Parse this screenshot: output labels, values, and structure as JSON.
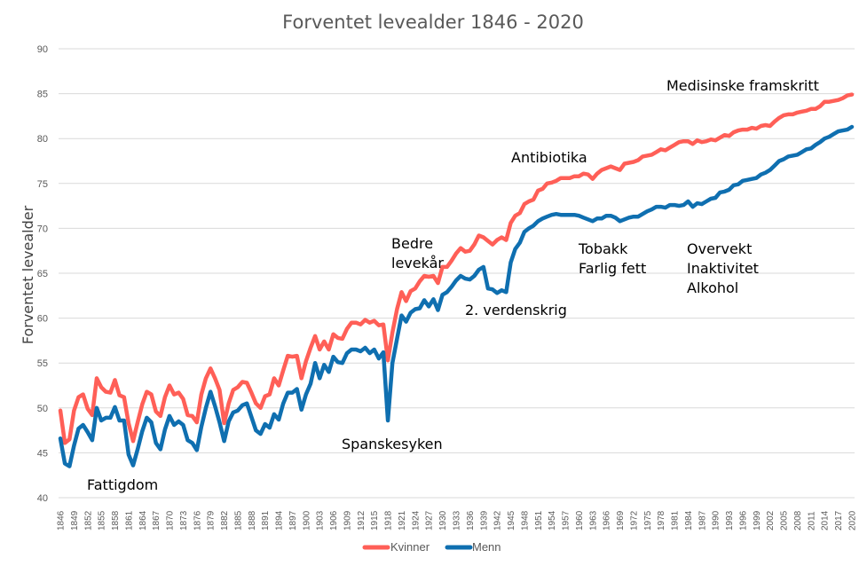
{
  "chart_data": {
    "type": "line",
    "title": "Forventet levealder 1846 - 2020",
    "xlabel": "",
    "ylabel": "Forventet levealder",
    "ylim": [
      40,
      90
    ],
    "yticks": [
      40,
      45,
      50,
      55,
      60,
      65,
      70,
      75,
      80,
      85,
      90
    ],
    "xlim": [
      1846,
      2020
    ],
    "xtick_step": 3,
    "grid": true,
    "legend_position": "bottom",
    "colors": {
      "Kvinner": "#ff5f57",
      "Menn": "#0f6fb0"
    },
    "x_start": 1846,
    "series": [
      {
        "name": "Kvinner",
        "values": [
          49.7,
          46.1,
          46.5,
          49.7,
          51.2,
          51.5,
          49.9,
          49.2,
          53.3,
          52.3,
          51.8,
          51.7,
          53.1,
          51.4,
          51.2,
          48.3,
          46.3,
          48.4,
          50.4,
          51.8,
          51.5,
          49.6,
          49.1,
          51.2,
          52.5,
          51.5,
          51.7,
          51.0,
          49.2,
          49.1,
          48.4,
          51.5,
          53.3,
          54.4,
          53.3,
          52.0,
          48.3,
          50.5,
          52.0,
          52.3,
          52.9,
          52.8,
          51.7,
          50.5,
          50.0,
          51.3,
          51.5,
          53.3,
          52.5,
          54.2,
          55.8,
          55.7,
          55.8,
          53.3,
          55.2,
          56.7,
          58.0,
          56.5,
          57.4,
          56.5,
          58.2,
          57.8,
          57.7,
          58.8,
          59.5,
          59.5,
          59.3,
          59.8,
          59.5,
          59.7,
          59.2,
          59.3,
          55.3,
          58.4,
          61.0,
          62.9,
          61.9,
          63.0,
          63.3,
          64.1,
          64.7,
          64.6,
          64.7,
          63.9,
          65.7,
          65.7,
          66.4,
          67.2,
          67.8,
          67.4,
          67.5,
          68.2,
          69.2,
          69.0,
          68.6,
          68.2,
          68.7,
          69.0,
          68.7,
          70.6,
          71.4,
          71.7,
          72.7,
          73.0,
          73.2,
          74.2,
          74.4,
          75.0,
          75.1,
          75.3,
          75.6,
          75.6,
          75.6,
          75.8,
          75.8,
          76.1,
          76.0,
          75.5,
          76.1,
          76.5,
          76.7,
          76.9,
          76.7,
          76.5,
          77.2,
          77.3,
          77.4,
          77.6,
          78.0,
          78.1,
          78.2,
          78.5,
          78.8,
          78.7,
          79.0,
          79.3,
          79.6,
          79.7,
          79.7,
          79.4,
          79.8,
          79.6,
          79.7,
          79.9,
          79.8,
          80.1,
          80.4,
          80.3,
          80.7,
          80.9,
          81.0,
          81.0,
          81.2,
          81.1,
          81.4,
          81.5,
          81.4,
          81.9,
          82.3,
          82.6,
          82.7,
          82.7,
          82.9,
          83.0,
          83.1,
          83.3,
          83.3,
          83.6,
          84.1,
          84.1,
          84.2,
          84.3,
          84.5,
          84.8,
          84.9
        ]
      },
      {
        "name": "Menn",
        "values": [
          46.6,
          43.8,
          43.5,
          45.8,
          47.7,
          48.1,
          47.3,
          46.4,
          50.0,
          48.6,
          48.9,
          48.9,
          50.1,
          48.6,
          48.6,
          44.8,
          43.6,
          45.4,
          47.4,
          48.9,
          48.4,
          46.1,
          45.4,
          47.6,
          49.1,
          48.1,
          48.5,
          48.1,
          46.4,
          46.1,
          45.3,
          47.9,
          50.0,
          51.8,
          50.2,
          48.4,
          46.3,
          48.5,
          49.5,
          49.7,
          50.3,
          50.5,
          49.0,
          47.5,
          47.1,
          48.2,
          47.8,
          49.3,
          48.7,
          50.5,
          51.7,
          51.7,
          52.1,
          49.8,
          51.5,
          52.7,
          55.0,
          53.3,
          54.8,
          54.0,
          55.7,
          55.1,
          55.0,
          56.1,
          56.5,
          56.5,
          56.3,
          56.7,
          56.1,
          56.5,
          55.5,
          56.2,
          48.6,
          55.0,
          57.7,
          60.3,
          59.6,
          60.6,
          61.0,
          61.1,
          62.0,
          61.3,
          62.1,
          60.9,
          62.6,
          62.9,
          63.5,
          64.2,
          64.7,
          64.4,
          64.3,
          64.7,
          65.4,
          65.7,
          63.3,
          63.2,
          62.8,
          63.1,
          62.9,
          66.2,
          67.7,
          68.4,
          69.6,
          70.0,
          70.3,
          70.8,
          71.1,
          71.3,
          71.5,
          71.6,
          71.5,
          71.5,
          71.5,
          71.5,
          71.4,
          71.2,
          71.0,
          70.8,
          71.1,
          71.1,
          71.4,
          71.4,
          71.2,
          70.8,
          71.0,
          71.2,
          71.3,
          71.3,
          71.6,
          71.9,
          72.1,
          72.4,
          72.4,
          72.3,
          72.6,
          72.6,
          72.5,
          72.6,
          73.0,
          72.4,
          72.8,
          72.7,
          73.0,
          73.3,
          73.4,
          74.0,
          74.1,
          74.3,
          74.8,
          74.9,
          75.3,
          75.4,
          75.5,
          75.6,
          76.0,
          76.2,
          76.5,
          77.0,
          77.5,
          77.7,
          78.0,
          78.1,
          78.2,
          78.5,
          78.8,
          78.9,
          79.3,
          79.6,
          80.0,
          80.2,
          80.5,
          80.8,
          80.9,
          81.0,
          81.3
        ]
      }
    ],
    "annotations": [
      {
        "id": "fattigdom",
        "lines": [
          "Fattigdom"
        ]
      },
      {
        "id": "spanskesyken",
        "lines": [
          "Spanskesyken"
        ]
      },
      {
        "id": "bedre-levekar",
        "lines": [
          "Bedre",
          "levekår"
        ]
      },
      {
        "id": "verdenskrig",
        "lines": [
          "2. verdenskrig"
        ]
      },
      {
        "id": "antibiotika",
        "lines": [
          "Antibiotika"
        ]
      },
      {
        "id": "tobakk",
        "lines": [
          "Tobakk",
          "Farlig fett"
        ]
      },
      {
        "id": "overvekt",
        "lines": [
          "Overvekt",
          "Inaktivitet",
          "Alkohol"
        ]
      },
      {
        "id": "medisinske",
        "lines": [
          "Medisinske framskritt"
        ]
      }
    ]
  }
}
